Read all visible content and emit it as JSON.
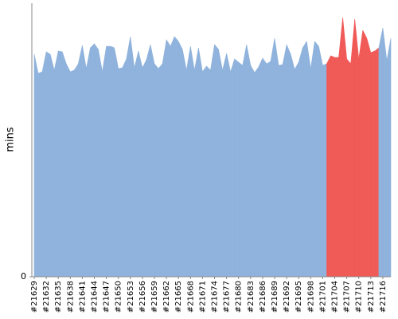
{
  "chart_data": {
    "type": "area",
    "ylabel": "mins",
    "ylim": [
      0,
      34.2
    ],
    "yticks": [
      0
    ],
    "categories": [
      "#21629",
      null,
      null,
      "#21632",
      null,
      null,
      "#21635",
      null,
      null,
      "#21638",
      null,
      null,
      "#21641",
      null,
      null,
      "#21644",
      null,
      null,
      "#21647",
      null,
      null,
      "#21650",
      null,
      null,
      "#21653",
      null,
      null,
      "#21656",
      null,
      null,
      "#21659",
      null,
      null,
      "#21662",
      null,
      null,
      "#21665",
      null,
      null,
      "#21668",
      null,
      null,
      "#21671",
      null,
      null,
      "#21674",
      null,
      null,
      "#21677",
      null,
      null,
      "#21680",
      null,
      null,
      "#21683",
      null,
      null,
      "#21686",
      null,
      null,
      "#21689",
      null,
      null,
      "#21692",
      null,
      null,
      "#21695",
      null,
      null,
      "#21698",
      null,
      null,
      "#21701",
      null,
      null,
      "#21704",
      null,
      null,
      "#21707",
      null,
      null,
      "#21710",
      null,
      null,
      "#21713",
      null,
      null,
      "#21716",
      null,
      null
    ],
    "values": [
      27.9,
      25.5,
      25.7,
      28.2,
      27.9,
      25.9,
      28.3,
      28.2,
      26.7,
      25.7,
      25.9,
      26.7,
      29.0,
      26.1,
      28.7,
      29.2,
      28.5,
      25.7,
      28.9,
      28.9,
      28.7,
      26.1,
      26.2,
      27.3,
      30.1,
      26.2,
      28.3,
      26.2,
      27.2,
      29.1,
      26.7,
      26.1,
      26.7,
      29.7,
      28.9,
      30.1,
      29.5,
      28.5,
      25.9,
      28.9,
      25.9,
      28.7,
      25.7,
      26.4,
      25.9,
      29.1,
      28.5,
      25.9,
      28.0,
      25.7,
      27.3,
      26.9,
      26.5,
      29.1,
      26.5,
      25.6,
      26.3,
      27.4,
      26.7,
      27.0,
      29.9,
      26.5,
      26.6,
      29.1,
      27.9,
      26.0,
      26.9,
      28.7,
      29.5,
      26.1,
      29.5,
      28.9,
      26.5,
      26.7,
      27.7,
      27.5,
      27.5,
      32.5,
      27.3,
      26.7,
      32.3,
      27.3,
      30.9,
      29.9,
      28.1,
      28.3,
      28.7,
      31.2,
      27.1,
      29.9
    ],
    "colors": [
      "#8fb3dc",
      "#8fb3dc",
      "#8fb3dc",
      "#8fb3dc",
      "#8fb3dc",
      "#8fb3dc",
      "#8fb3dc",
      "#8fb3dc",
      "#8fb3dc",
      "#8fb3dc",
      "#8fb3dc",
      "#8fb3dc",
      "#8fb3dc",
      "#8fb3dc",
      "#8fb3dc",
      "#8fb3dc",
      "#8fb3dc",
      "#8fb3dc",
      "#8fb3dc",
      "#8fb3dc",
      "#8fb3dc",
      "#8fb3dc",
      "#8fb3dc",
      "#8fb3dc",
      "#8fb3dc",
      "#8fb3dc",
      "#8fb3dc",
      "#8fb3dc",
      "#8fb3dc",
      "#8fb3dc",
      "#8fb3dc",
      "#8fb3dc",
      "#8fb3dc",
      "#8fb3dc",
      "#8fb3dc",
      "#8fb3dc",
      "#8fb3dc",
      "#8fb3dc",
      "#8fb3dc",
      "#8fb3dc",
      "#8fb3dc",
      "#8fb3dc",
      "#8fb3dc",
      "#8fb3dc",
      "#8fb3dc",
      "#8fb3dc",
      "#8fb3dc",
      "#8fb3dc",
      "#8fb3dc",
      "#8fb3dc",
      "#8fb3dc",
      "#8fb3dc",
      "#8fb3dc",
      "#8fb3dc",
      "#8fb3dc",
      "#8fb3dc",
      "#8fb3dc",
      "#8fb3dc",
      "#8fb3dc",
      "#8fb3dc",
      "#8fb3dc",
      "#8fb3dc",
      "#8fb3dc",
      "#8fb3dc",
      "#8fb3dc",
      "#8fb3dc",
      "#8fb3dc",
      "#8fb3dc",
      "#8fb3dc",
      "#8fb3dc",
      "#8fb3dc",
      "#8fb3dc",
      "#8fb3dc",
      "#8fb3dc",
      "#f05a57",
      "#f05a57",
      "#f05a57",
      "#f05a57",
      "#f05a57",
      "#f05a57",
      "#f05a57",
      "#f05a57",
      "#f05a57",
      "#f05a57",
      "#f05a57",
      "#f05a57",
      "#f05a57",
      "#8fb3dc",
      "#8fb3dc",
      "#8fb3dc"
    ]
  }
}
